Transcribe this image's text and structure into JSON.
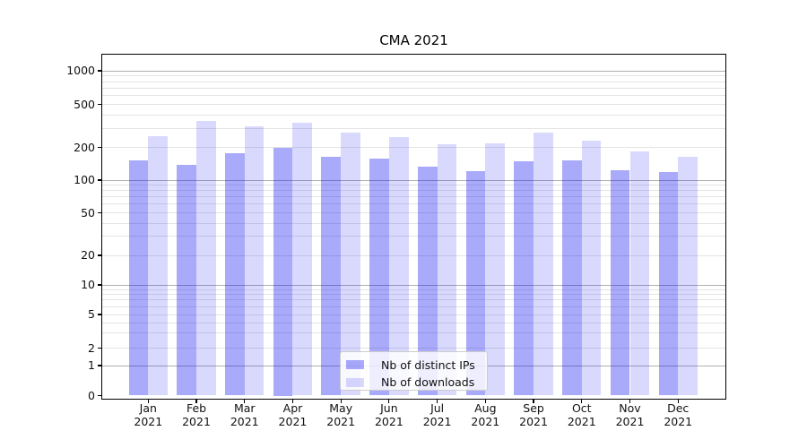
{
  "chart_data": {
    "type": "bar",
    "title": "CMA 2021",
    "categories": [
      "Jan 2021",
      "Feb 2021",
      "Mar 2021",
      "Apr 2021",
      "May 2021",
      "Jun 2021",
      "Jul 2021",
      "Aug 2021",
      "Sep 2021",
      "Oct 2021",
      "Nov 2021",
      "Dec 2021"
    ],
    "series": [
      {
        "name": "Nb of distinct IPs",
        "color": "rgba(10,10,240,0.345)",
        "values": [
          152,
          138,
          176,
          200,
          165,
          158,
          133,
          122,
          148,
          152,
          123,
          119
        ]
      },
      {
        "name": "Nb of downloads",
        "color": "rgba(10,10,240,0.155)",
        "values": [
          255,
          350,
          315,
          335,
          272,
          248,
          215,
          220,
          272,
          232,
          185,
          163
        ]
      }
    ],
    "y_axis": {
      "scale": "symlog",
      "tick_values": [
        0,
        1,
        2,
        5,
        10,
        20,
        50,
        100,
        200,
        500,
        1000
      ],
      "tick_labels": [
        "0",
        "1",
        "2",
        "5",
        "10",
        "20",
        "50",
        "100",
        "200",
        "500",
        "1000"
      ],
      "ylim": [
        0,
        1400
      ]
    },
    "x_axis": {
      "label_line2": "2021"
    },
    "grid": "both",
    "legend_position": "lower center",
    "colors": {
      "major_grid": "#b0b0b0",
      "minor_grid": "#e4e4e4",
      "spine": "#000000"
    }
  }
}
